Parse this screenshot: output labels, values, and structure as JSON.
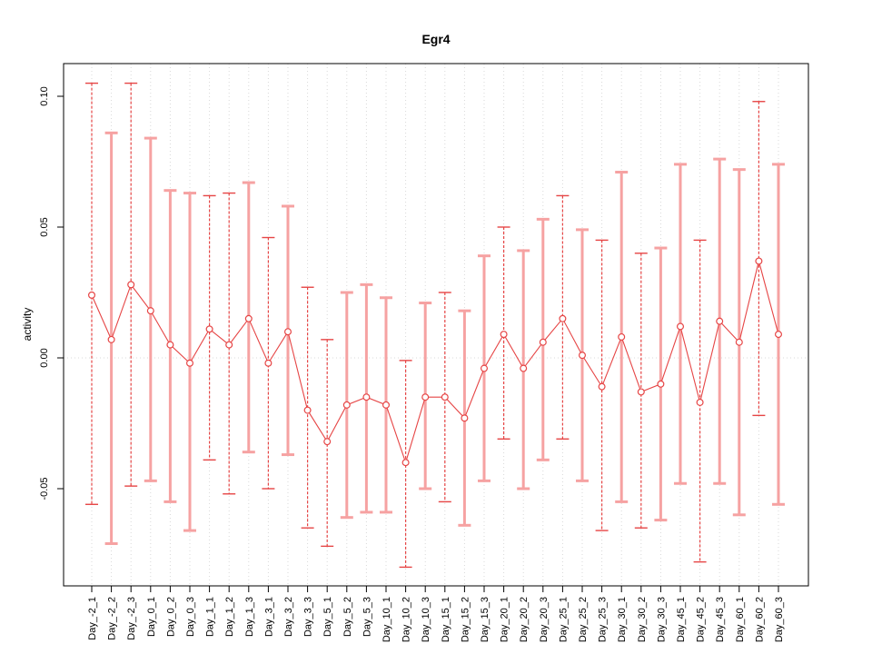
{
  "chart_data": {
    "type": "line",
    "title": "Egr4",
    "xlabel": "",
    "ylabel": "activity",
    "ylim": [
      -0.087,
      0.112
    ],
    "yticks": [
      -0.05,
      0.0,
      0.05,
      0.1
    ],
    "ytick_labels": [
      "-0.05",
      "0.00",
      "0.05",
      "0.10"
    ],
    "grid": "dotted-vertical-at-each-x-and-zero-line",
    "legend": "none",
    "colors": {
      "point_and_line": "#e64545",
      "dashed_whisker": "#e64545",
      "solid_whisker": "#f6a2a2",
      "gridline": "#d9d9d9",
      "zero_line": "#d9d9d9",
      "axis": "#000000",
      "text": "#000000"
    },
    "categories": [
      "Day_-2_1",
      "Day_-2_2",
      "Day_-2_3",
      "Day_0_1",
      "Day_0_2",
      "Day_0_3",
      "Day_1_1",
      "Day_1_2",
      "Day_1_3",
      "Day_3_1",
      "Day_3_2",
      "Day_3_3",
      "Day_5_1",
      "Day_5_2",
      "Day_5_3",
      "Day_10_1",
      "Day_10_2",
      "Day_10_3",
      "Day_15_1",
      "Day_15_2",
      "Day_15_3",
      "Day_20_1",
      "Day_20_2",
      "Day_20_3",
      "Day_25_1",
      "Day_25_2",
      "Day_25_3",
      "Day_30_1",
      "Day_30_2",
      "Day_30_3",
      "Day_45_1",
      "Day_45_2",
      "Day_45_3",
      "Day_60_1",
      "Day_60_2",
      "Day_60_3"
    ],
    "series": [
      {
        "name": "activity",
        "points": [
          {
            "label": "Day_-2_1",
            "value": 0.024,
            "upper": 0.105,
            "lower": -0.056,
            "style": "dashed"
          },
          {
            "label": "Day_-2_2",
            "value": 0.007,
            "upper": 0.086,
            "lower": -0.071,
            "style": "solid"
          },
          {
            "label": "Day_-2_3",
            "value": 0.028,
            "upper": 0.105,
            "lower": -0.049,
            "style": "dashed"
          },
          {
            "label": "Day_0_1",
            "value": 0.018,
            "upper": 0.084,
            "lower": -0.047,
            "style": "solid"
          },
          {
            "label": "Day_0_2",
            "value": 0.005,
            "upper": 0.064,
            "lower": -0.055,
            "style": "solid"
          },
          {
            "label": "Day_0_3",
            "value": -0.002,
            "upper": 0.063,
            "lower": -0.066,
            "style": "solid"
          },
          {
            "label": "Day_1_1",
            "value": 0.011,
            "upper": 0.062,
            "lower": -0.039,
            "style": "dashed"
          },
          {
            "label": "Day_1_2",
            "value": 0.005,
            "upper": 0.063,
            "lower": -0.052,
            "style": "dashed"
          },
          {
            "label": "Day_1_3",
            "value": 0.015,
            "upper": 0.067,
            "lower": -0.036,
            "style": "solid"
          },
          {
            "label": "Day_3_1",
            "value": -0.002,
            "upper": 0.046,
            "lower": -0.05,
            "style": "dashed"
          },
          {
            "label": "Day_3_2",
            "value": 0.01,
            "upper": 0.058,
            "lower": -0.037,
            "style": "solid"
          },
          {
            "label": "Day_3_3",
            "value": -0.02,
            "upper": 0.027,
            "lower": -0.065,
            "style": "dashed"
          },
          {
            "label": "Day_5_1",
            "value": -0.032,
            "upper": 0.007,
            "lower": -0.072,
            "style": "dashed"
          },
          {
            "label": "Day_5_2",
            "value": -0.018,
            "upper": 0.025,
            "lower": -0.061,
            "style": "solid"
          },
          {
            "label": "Day_5_3",
            "value": -0.015,
            "upper": 0.028,
            "lower": -0.059,
            "style": "solid"
          },
          {
            "label": "Day_10_1",
            "value": -0.018,
            "upper": 0.023,
            "lower": -0.059,
            "style": "solid"
          },
          {
            "label": "Day_10_2",
            "value": -0.04,
            "upper": -0.001,
            "lower": -0.08,
            "style": "dashed"
          },
          {
            "label": "Day_10_3",
            "value": -0.015,
            "upper": 0.021,
            "lower": -0.05,
            "style": "solid"
          },
          {
            "label": "Day_15_1",
            "value": -0.015,
            "upper": 0.025,
            "lower": -0.055,
            "style": "dashed"
          },
          {
            "label": "Day_15_2",
            "value": -0.023,
            "upper": 0.018,
            "lower": -0.064,
            "style": "solid"
          },
          {
            "label": "Day_15_3",
            "value": -0.004,
            "upper": 0.039,
            "lower": -0.047,
            "style": "solid"
          },
          {
            "label": "Day_20_1",
            "value": 0.009,
            "upper": 0.05,
            "lower": -0.031,
            "style": "dashed"
          },
          {
            "label": "Day_20_2",
            "value": -0.004,
            "upper": 0.041,
            "lower": -0.05,
            "style": "solid"
          },
          {
            "label": "Day_20_3",
            "value": 0.006,
            "upper": 0.053,
            "lower": -0.039,
            "style": "solid"
          },
          {
            "label": "Day_25_1",
            "value": 0.015,
            "upper": 0.062,
            "lower": -0.031,
            "style": "dashed"
          },
          {
            "label": "Day_25_2",
            "value": 0.001,
            "upper": 0.049,
            "lower": -0.047,
            "style": "solid"
          },
          {
            "label": "Day_25_3",
            "value": -0.011,
            "upper": 0.045,
            "lower": -0.066,
            "style": "dashed"
          },
          {
            "label": "Day_30_1",
            "value": 0.008,
            "upper": 0.071,
            "lower": -0.055,
            "style": "solid"
          },
          {
            "label": "Day_30_2",
            "value": -0.013,
            "upper": 0.04,
            "lower": -0.065,
            "style": "dashed"
          },
          {
            "label": "Day_30_3",
            "value": -0.01,
            "upper": 0.042,
            "lower": -0.062,
            "style": "solid"
          },
          {
            "label": "Day_45_1",
            "value": 0.012,
            "upper": 0.074,
            "lower": -0.048,
            "style": "solid"
          },
          {
            "label": "Day_45_2",
            "value": -0.017,
            "upper": 0.045,
            "lower": -0.078,
            "style": "dashed"
          },
          {
            "label": "Day_45_3",
            "value": 0.014,
            "upper": 0.076,
            "lower": -0.048,
            "style": "solid"
          },
          {
            "label": "Day_60_1",
            "value": 0.006,
            "upper": 0.072,
            "lower": -0.06,
            "style": "solid"
          },
          {
            "label": "Day_60_2",
            "value": 0.037,
            "upper": 0.098,
            "lower": -0.022,
            "style": "dashed"
          },
          {
            "label": "Day_60_3",
            "value": 0.009,
            "upper": 0.074,
            "lower": -0.056,
            "style": "solid"
          }
        ]
      }
    ]
  }
}
